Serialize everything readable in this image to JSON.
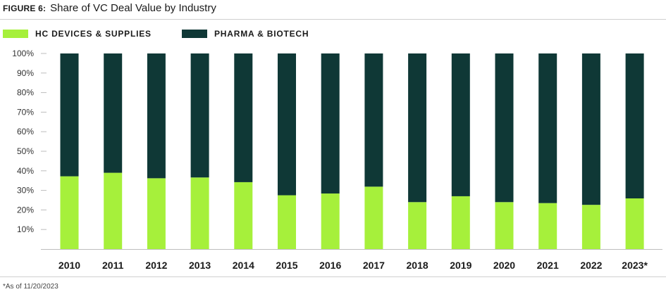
{
  "header": {
    "figure_label": "FIGURE 6:",
    "title": "Share of VC Deal Value by Industry"
  },
  "footnote": "*As of 11/20/2023",
  "colors": {
    "hc_devices": "#a6f03b",
    "pharma": "#0f3836",
    "axis_line": "#bdbdbd"
  },
  "chart_data": {
    "type": "bar",
    "stacked": true,
    "title": "Share of VC Deal Value by Industry",
    "categories": [
      "2010",
      "2011",
      "2012",
      "2013",
      "2014",
      "2015",
      "2016",
      "2017",
      "2018",
      "2019",
      "2020",
      "2021",
      "2022",
      "2023*"
    ],
    "series": [
      {
        "name": "HC DEVICES & SUPPLIES",
        "color": "#a6f03b",
        "values": [
          37.2,
          39.0,
          36.2,
          36.6,
          34.2,
          27.5,
          28.4,
          31.9,
          24.0,
          27.0,
          24.0,
          23.5,
          22.6,
          25.9
        ]
      },
      {
        "name": "PHARMA & BIOTECH",
        "color": "#0f3836",
        "values": [
          62.8,
          61.0,
          63.8,
          63.4,
          65.8,
          72.5,
          71.6,
          68.1,
          76.0,
          73.0,
          76.0,
          76.5,
          77.4,
          74.1
        ]
      }
    ],
    "ylim": [
      0,
      100
    ],
    "yticks": [
      "10%",
      "20%",
      "30%",
      "40%",
      "50%",
      "60%",
      "70%",
      "80%",
      "90%",
      "100%"
    ],
    "ytick_values": [
      10,
      20,
      30,
      40,
      50,
      60,
      70,
      80,
      90,
      100
    ],
    "legend_position": "top-left",
    "grid": false
  }
}
